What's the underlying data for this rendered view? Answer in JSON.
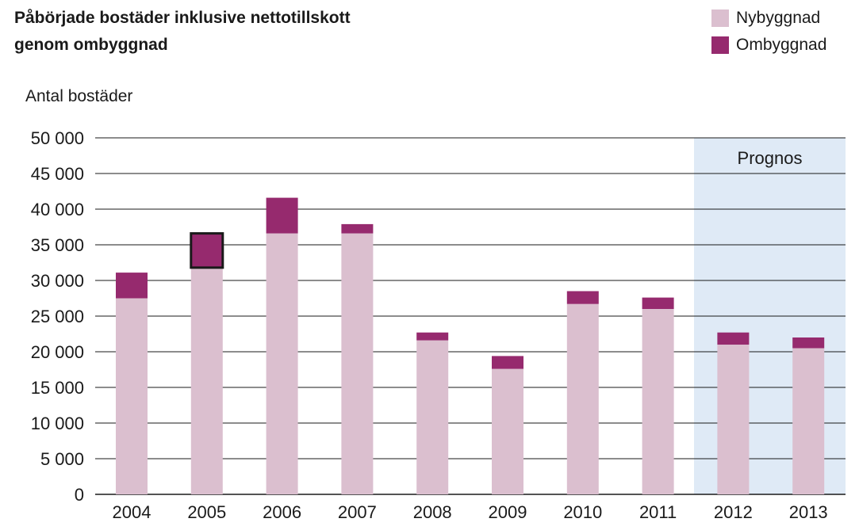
{
  "chart_data": {
    "type": "bar",
    "stacked": true,
    "title_lines": [
      "Påbörjade bostäder inklusive nettotillskott",
      "genom ombyggnad"
    ],
    "ylabel": "Antal bostäder",
    "xlabel": "",
    "categories": [
      "2004",
      "2005",
      "2006",
      "2007",
      "2008",
      "2009",
      "2010",
      "2011",
      "2012",
      "2013"
    ],
    "series": [
      {
        "name": "Nybyggnad",
        "color": "#dbbfcf",
        "values": [
          27500,
          31800,
          36600,
          36600,
          21600,
          17600,
          26700,
          26000,
          21000,
          20500
        ]
      },
      {
        "name": "Ombyggnad",
        "color": "#962a6e",
        "values": [
          3600,
          4800,
          5000,
          1300,
          1100,
          1800,
          1800,
          1600,
          1700,
          1500
        ]
      }
    ],
    "ylim": [
      0,
      50000
    ],
    "yticks": [
      0,
      5000,
      10000,
      15000,
      20000,
      25000,
      30000,
      35000,
      40000,
      45000,
      50000
    ],
    "ytick_labels": [
      "0",
      "5 000",
      "10 000",
      "15 000",
      "20 000",
      "25 000",
      "30 000",
      "35 000",
      "40 000",
      "45 000",
      "50 000"
    ],
    "grid": true,
    "legend_position": "top-right",
    "highlighted_bar": {
      "category": "2005",
      "series": "Ombyggnad"
    },
    "forecast": {
      "label": "Prognos",
      "categories": [
        "2012",
        "2013"
      ],
      "color": "#dfeaf6"
    }
  }
}
